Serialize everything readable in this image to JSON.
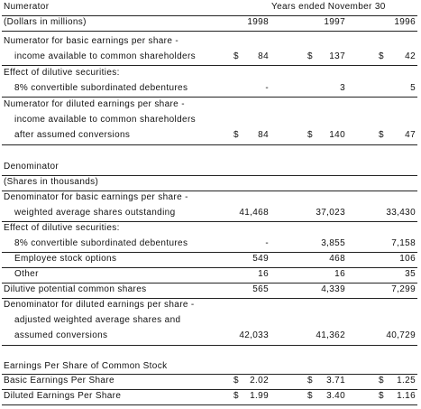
{
  "numerator": {
    "title": "Numerator",
    "period_header": "Years ended November 30",
    "units": "(Dollars in millions)",
    "years": [
      "1998",
      "1997",
      "1996"
    ],
    "basic_label_1": "Numerator for basic earnings per share -",
    "basic_label_2": "income available to common shareholders",
    "basic": {
      "d": [
        "$",
        "$",
        "$"
      ],
      "v": [
        "84",
        "137",
        "42"
      ]
    },
    "dilutive_label": "Effect of dilutive securities:",
    "convertible_label": "8% convertible subordinated debentures",
    "convertible": [
      "-",
      "3",
      "5"
    ],
    "diluted_label_1": "Numerator for diluted earnings per share -",
    "diluted_label_2": "income available to common shareholders",
    "diluted_label_3": "after assumed conversions",
    "diluted": {
      "d": [
        "$",
        "$",
        "$"
      ],
      "v": [
        "84",
        "140",
        "47"
      ]
    }
  },
  "denominator": {
    "title": "Denominator",
    "units": "(Shares in thousands)",
    "basic_label_1": "Denominator for basic earnings per share -",
    "basic_label_2": "weighted average shares outstanding",
    "basic": [
      "41,468",
      "37,023",
      "33,430"
    ],
    "dilutive_label": "Effect of dilutive securities:",
    "convertible_label": "8% convertible subordinated debentures",
    "convertible": [
      "-",
      "3,855",
      "7,158"
    ],
    "options_label": "Employee stock options",
    "options": [
      "549",
      "468",
      "106"
    ],
    "other_label": "Other",
    "other": [
      "16",
      "16",
      "35"
    ],
    "potential_label": "Dilutive potential common shares",
    "potential": [
      "565",
      "4,339",
      "7,299"
    ],
    "diluted_label_1": "Denominator for diluted earnings per share -",
    "diluted_label_2": "adjusted weighted average shares and",
    "diluted_label_3": "assumed conversions",
    "diluted": [
      "42,033",
      "41,362",
      "40,729"
    ]
  },
  "eps": {
    "title": "Earnings Per Share of Common Stock",
    "basic_label": "Basic Earnings Per Share",
    "basic": {
      "d": [
        "$",
        "$",
        "$"
      ],
      "v": [
        "2.02",
        "3.71",
        "1.25"
      ]
    },
    "diluted_label": "Diluted Earnings Per Share",
    "diluted": {
      "d": [
        "$",
        "$",
        "$"
      ],
      "v": [
        "1.99",
        "3.40",
        "1.16"
      ]
    }
  }
}
